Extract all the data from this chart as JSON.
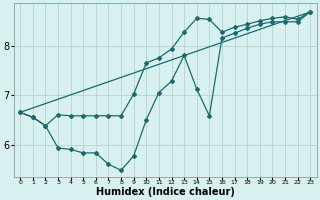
{
  "xlabel": "Humidex (Indice chaleur)",
  "background_color": "#d9f0f0",
  "line_color": "#1a6b6b",
  "grid_color": "#b8d8d8",
  "xlim": [
    -0.5,
    23.5
  ],
  "ylim": [
    5.35,
    8.85
  ],
  "yticks": [
    6,
    7,
    8
  ],
  "xticks": [
    0,
    1,
    2,
    3,
    4,
    5,
    6,
    7,
    8,
    9,
    10,
    11,
    12,
    13,
    14,
    15,
    16,
    17,
    18,
    19,
    20,
    21,
    22,
    23
  ],
  "line1_x": [
    0,
    1,
    2,
    3,
    4,
    5,
    6,
    7,
    8,
    9,
    10,
    11,
    12,
    13,
    14,
    15,
    16,
    17,
    18,
    19,
    20,
    21,
    22,
    23
  ],
  "line1_y": [
    6.65,
    6.55,
    6.38,
    6.6,
    6.58,
    6.58,
    6.58,
    6.58,
    6.58,
    7.02,
    7.65,
    7.75,
    7.93,
    8.27,
    8.55,
    8.53,
    8.27,
    8.37,
    8.43,
    8.5,
    8.55,
    8.58,
    8.53,
    8.68
  ],
  "line2_x": [
    0,
    1,
    2,
    3,
    4,
    5,
    6,
    7,
    8,
    9,
    10,
    11,
    12,
    13,
    14,
    15,
    16,
    17,
    18,
    19,
    20,
    21,
    22,
    23
  ],
  "line2_y": [
    6.65,
    6.55,
    6.38,
    5.93,
    5.9,
    5.83,
    5.83,
    5.6,
    5.48,
    5.77,
    6.5,
    7.05,
    7.28,
    7.8,
    7.12,
    6.58,
    8.15,
    8.25,
    8.35,
    8.43,
    8.48,
    8.48,
    8.48,
    8.68
  ],
  "line3_x": [
    0,
    23
  ],
  "line3_y": [
    6.65,
    8.68
  ]
}
